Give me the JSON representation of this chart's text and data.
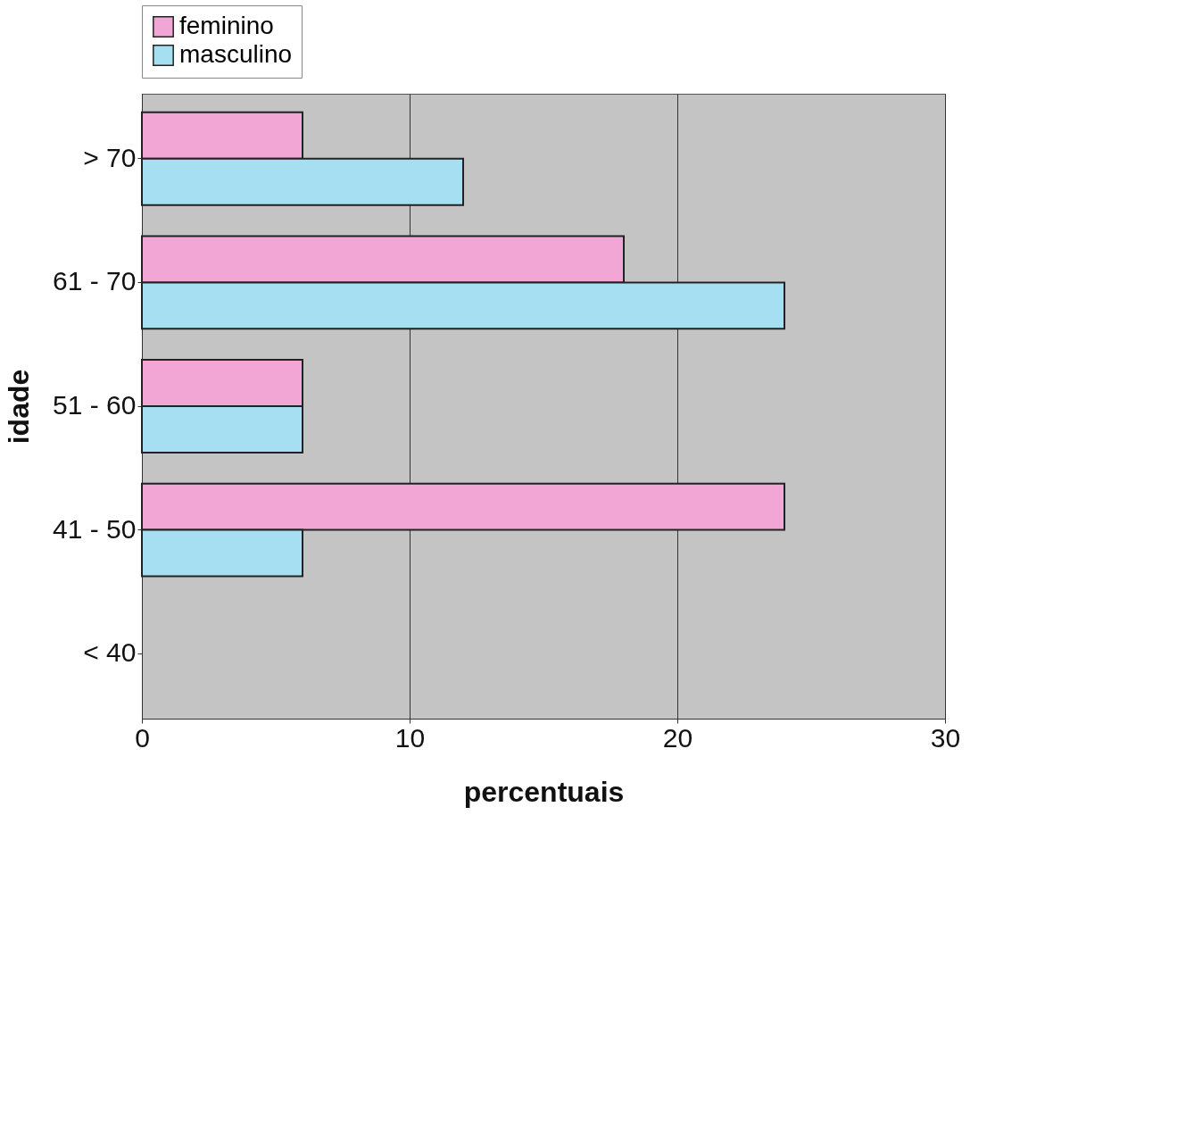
{
  "chart_data": {
    "type": "bar",
    "orientation": "horizontal",
    "xlabel": "percentuais",
    "ylabel": "idade",
    "categories": [
      "> 70",
      "61 - 70",
      "51 - 60",
      "41 - 50",
      "< 40"
    ],
    "series": [
      {
        "name": "feminino",
        "color": "#f2a6d6",
        "values": [
          6,
          18,
          6,
          24,
          null
        ]
      },
      {
        "name": "masculino",
        "color": "#a6def2",
        "values": [
          12,
          24,
          6,
          6,
          null
        ]
      }
    ],
    "xlim": [
      0,
      30
    ],
    "xticks": [
      0,
      10,
      20,
      30
    ],
    "grid": "x",
    "legend": "top"
  }
}
